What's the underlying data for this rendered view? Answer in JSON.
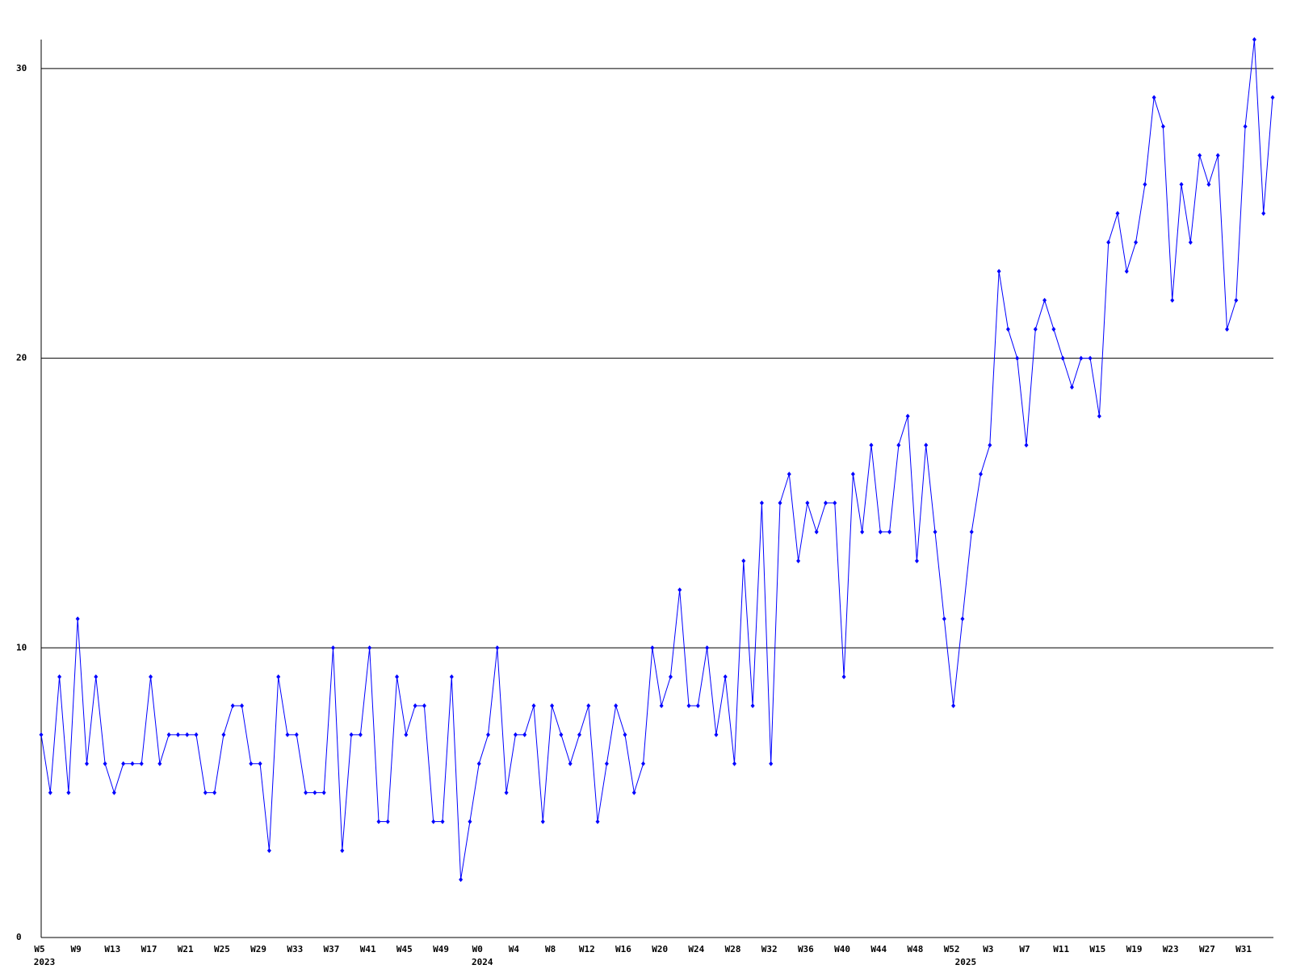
{
  "chart_data": {
    "type": "line",
    "categories": [
      "W5",
      null,
      null,
      null,
      "W9",
      null,
      null,
      null,
      "W13",
      null,
      null,
      null,
      "W17",
      null,
      null,
      null,
      "W21",
      null,
      null,
      null,
      "W25",
      null,
      null,
      null,
      "W29",
      null,
      null,
      null,
      "W33",
      null,
      null,
      null,
      "W37",
      null,
      null,
      null,
      "W41",
      null,
      null,
      null,
      "W45",
      null,
      null,
      null,
      "W49",
      null,
      null,
      null,
      "W0",
      null,
      null,
      null,
      "W4",
      null,
      null,
      null,
      "W8",
      null,
      null,
      null,
      "W12",
      null,
      null,
      null,
      "W16",
      null,
      null,
      null,
      "W20",
      null,
      null,
      null,
      "W24",
      null,
      null,
      null,
      "W28",
      null,
      null,
      null,
      "W32",
      null,
      null,
      null,
      "W36",
      null,
      null,
      null,
      "W40",
      null,
      null,
      null,
      "W44",
      null,
      null,
      null,
      "W48",
      null,
      null,
      null,
      "W52",
      null,
      null,
      null,
      "W3",
      null,
      null,
      null,
      "W7",
      null,
      null,
      null,
      "W11",
      null,
      null,
      null,
      "W15",
      null,
      null,
      null,
      "W19",
      null,
      null,
      null,
      "W23",
      null,
      null,
      null,
      "W27",
      null,
      null,
      null,
      "W31",
      null,
      null,
      null
    ],
    "years": [
      "2023",
      null,
      null,
      null,
      null,
      null,
      null,
      null,
      null,
      null,
      null,
      null,
      null,
      null,
      null,
      null,
      null,
      null,
      null,
      null,
      null,
      null,
      null,
      null,
      null,
      null,
      null,
      null,
      null,
      null,
      null,
      null,
      null,
      null,
      null,
      null,
      null,
      null,
      null,
      null,
      null,
      null,
      null,
      null,
      null,
      null,
      null,
      null,
      "2024",
      null,
      null,
      null,
      null,
      null,
      null,
      null,
      null,
      null,
      null,
      null,
      null,
      null,
      null,
      null,
      null,
      null,
      null,
      null,
      null,
      null,
      null,
      null,
      null,
      null,
      null,
      null,
      null,
      null,
      null,
      null,
      null,
      null,
      null,
      null,
      null,
      null,
      null,
      null,
      null,
      null,
      null,
      null,
      null,
      null,
      null,
      null,
      null,
      null,
      null,
      null,
      null,
      "2025",
      null,
      null,
      null,
      null,
      null,
      null,
      null,
      null,
      null,
      null,
      null,
      null,
      null,
      null,
      null,
      null,
      null,
      null,
      null,
      null,
      null,
      null,
      null,
      null,
      null,
      null,
      null,
      null,
      null,
      null,
      null,
      null,
      null
    ],
    "series": [
      {
        "color": "#0000ff",
        "values": [
          7,
          5,
          9,
          5,
          11,
          6,
          9,
          6,
          5,
          6,
          6,
          6,
          9,
          6,
          7,
          7,
          7,
          7,
          5,
          5,
          7,
          8,
          8,
          6,
          6,
          3,
          9,
          7,
          7,
          5,
          5,
          5,
          10,
          3,
          7,
          7,
          10,
          4,
          4,
          9,
          7,
          8,
          8,
          4,
          4,
          9,
          2,
          4,
          6,
          7,
          10,
          5,
          7,
          7,
          8,
          4,
          8,
          7,
          6,
          7,
          8,
          4,
          6,
          8,
          7,
          5,
          6,
          10,
          8,
          9,
          12,
          8,
          8,
          10,
          7,
          9,
          6,
          13,
          8,
          15,
          6,
          15,
          16,
          13,
          15,
          14,
          15,
          15,
          9,
          16,
          14,
          17,
          14,
          14,
          17,
          18,
          13,
          17,
          14,
          11,
          8,
          11,
          14,
          16,
          17,
          23,
          21,
          20,
          17,
          21,
          22,
          21,
          20,
          19,
          20,
          20,
          18,
          24,
          25,
          23,
          24,
          26,
          29,
          28,
          22,
          26,
          24,
          27,
          26,
          27,
          21,
          22,
          28,
          31,
          25,
          29
        ]
      }
    ],
    "ylim": [
      0,
      31
    ],
    "yticks": [
      0,
      10,
      20,
      30
    ],
    "grid": true
  }
}
